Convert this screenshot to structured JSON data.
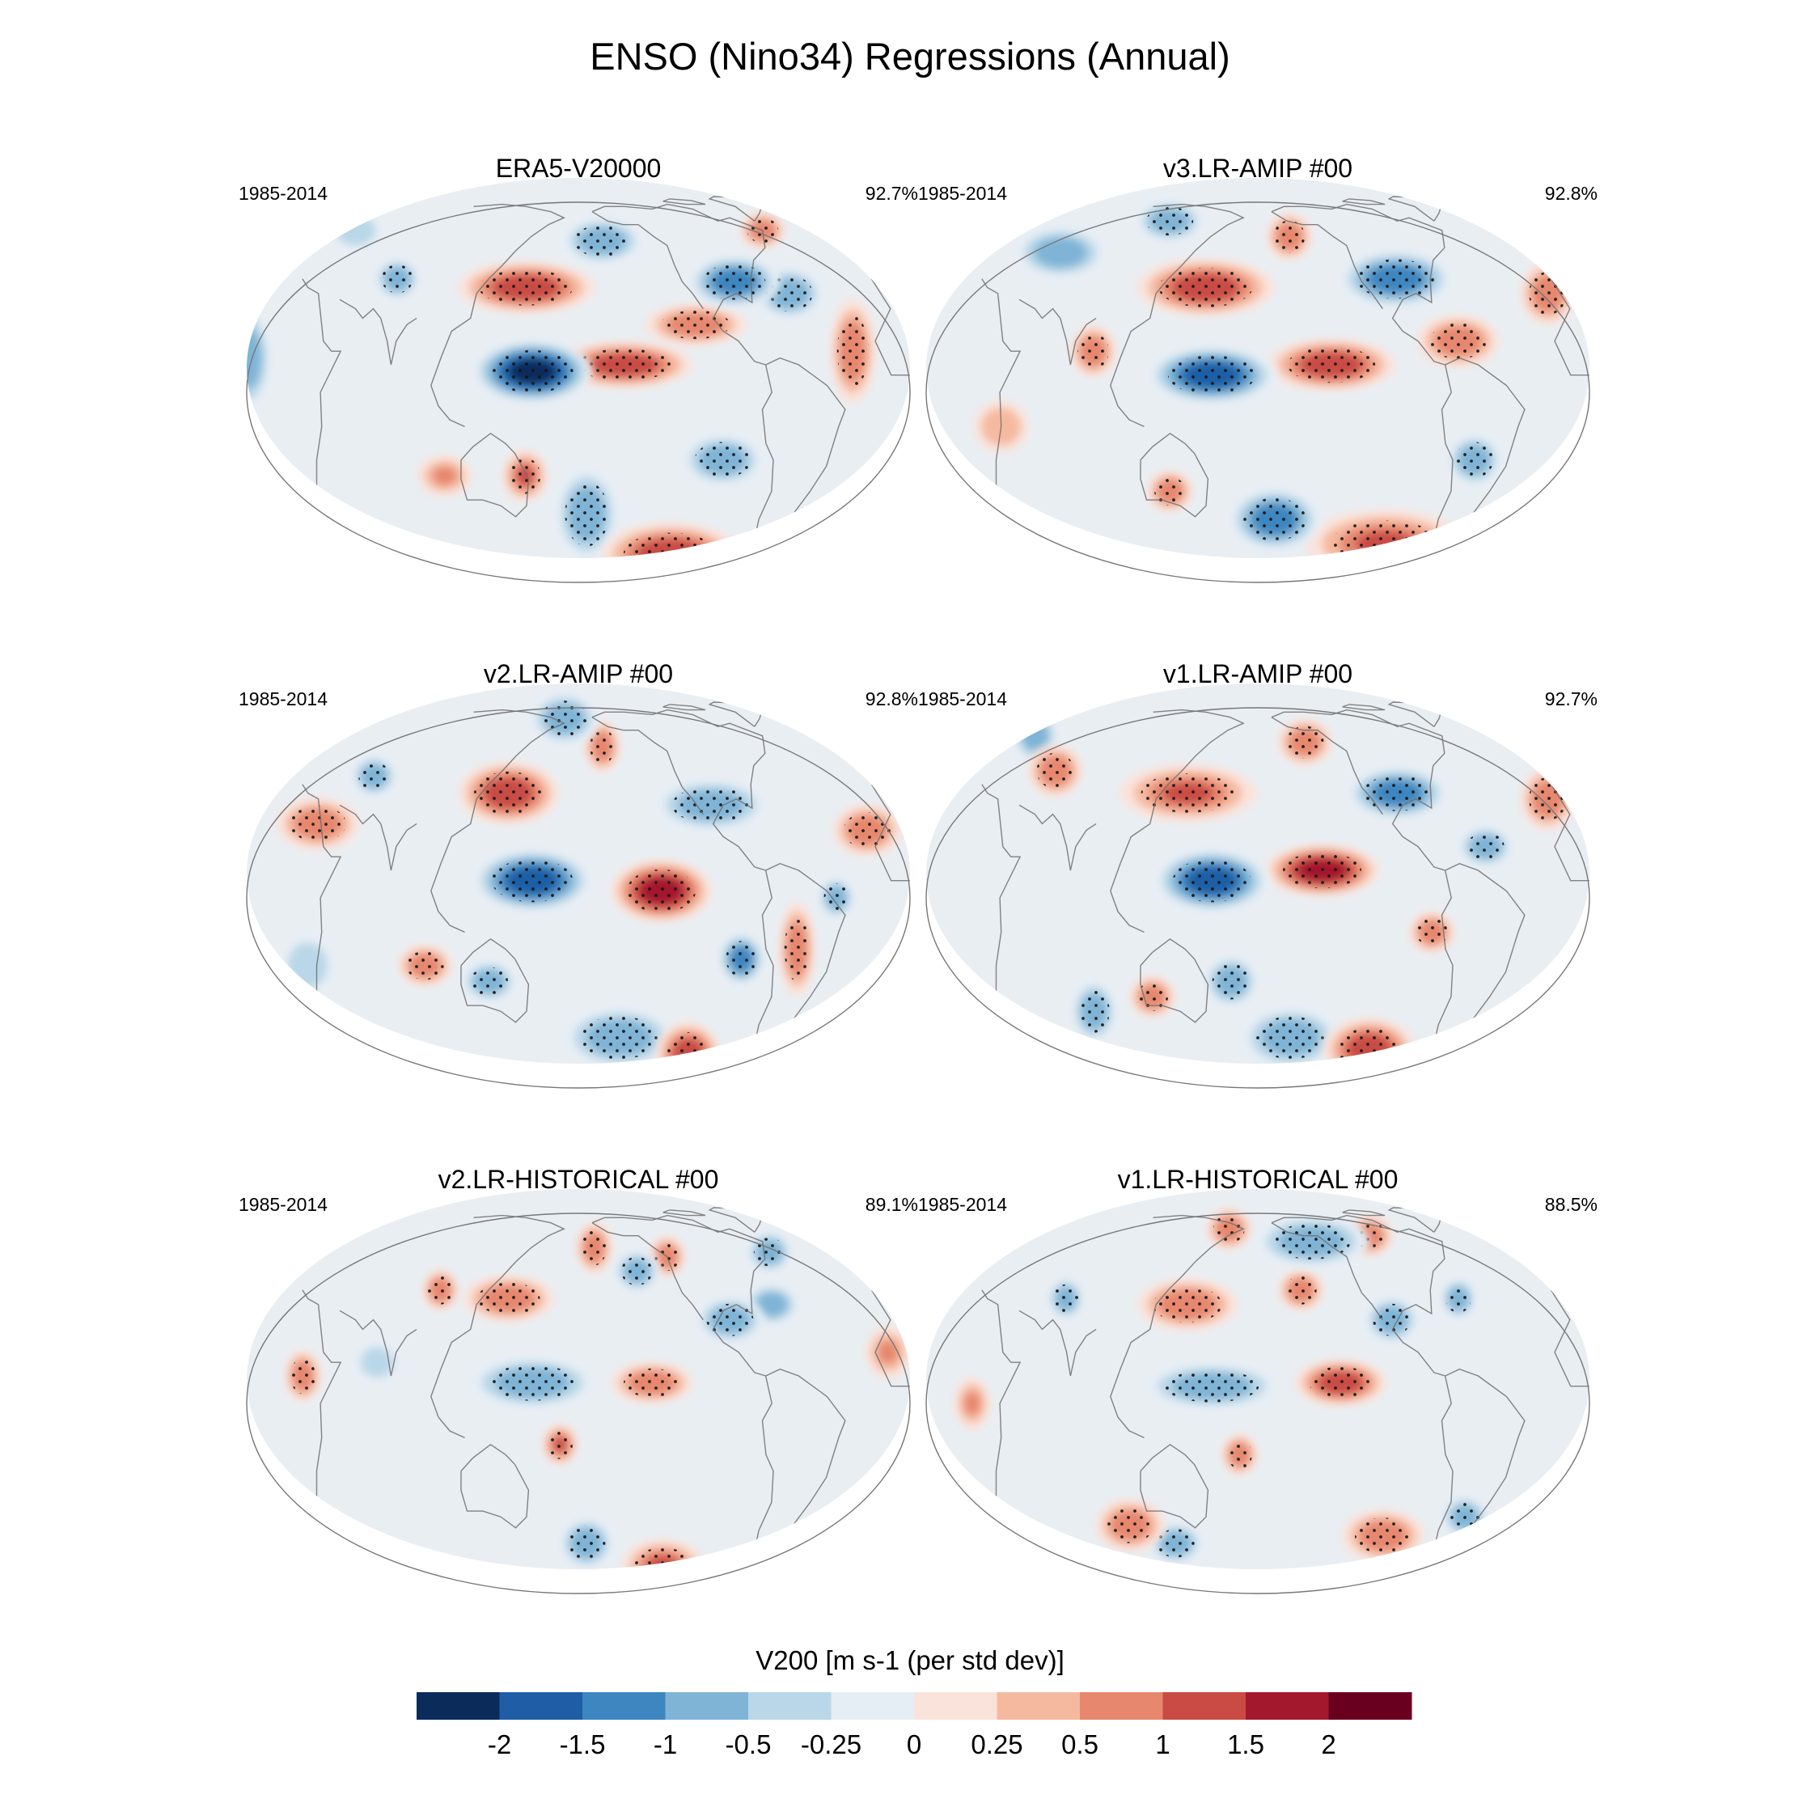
{
  "title": "ENSO (Nino34) Regressions (Annual)",
  "colors": {
    "ocean_base": "#e9eef3",
    "coast": "#6e6e6e",
    "stipple": "#111111"
  },
  "chart_data": {
    "type": "map-contour",
    "variable": "V200",
    "units_label": "V200 [m s-1 (per std dev)]",
    "levels": [
      "-2",
      "-1.5",
      "-1",
      "-0.5",
      "-0.25",
      "0",
      "0.25",
      "0.5",
      "1",
      "1.5",
      "2"
    ],
    "level_values": [
      -2,
      -1.5,
      -1,
      -0.5,
      -0.25,
      0,
      0.25,
      0.5,
      1,
      1.5,
      2
    ],
    "palette": [
      "#0b2c5b",
      "#1f5ea6",
      "#3d86c0",
      "#7fb4d6",
      "#b9d7e8",
      "#e6eef5",
      "#fae3da",
      "#f5b9a0",
      "#e6876e",
      "#c94b44",
      "#a4182d",
      "#6a0020"
    ],
    "panels": [
      {
        "title": "ERA5-V20000",
        "period": "1985-2014",
        "pct": "92.7%",
        "blobs": [
          {
            "lon": 155,
            "lat": 6,
            "v": -2.1,
            "rx": 26,
            "ry": 12,
            "sig": true
          },
          {
            "lon": 150,
            "lat": 32,
            "v": 1.2,
            "rx": 30,
            "ry": 10,
            "sig": true
          },
          {
            "lon": 205,
            "lat": 8,
            "v": 1.3,
            "rx": 30,
            "ry": 9,
            "sig": true
          },
          {
            "lon": 245,
            "lat": 20,
            "v": 0.9,
            "rx": 22,
            "ry": 8,
            "sig": true
          },
          {
            "lon": 270,
            "lat": 34,
            "v": -1.2,
            "rx": 20,
            "ry": 10,
            "sig": true
          },
          {
            "lon": 300,
            "lat": 30,
            "v": -0.8,
            "rx": 15,
            "ry": 10,
            "sig": true
          },
          {
            "lon": 195,
            "lat": 50,
            "v": -0.9,
            "rx": 18,
            "ry": 9,
            "sig": true
          },
          {
            "lon": 300,
            "lat": 55,
            "v": 0.7,
            "rx": 10,
            "ry": 7,
            "sig": true
          },
          {
            "lon": 330,
            "lat": 12,
            "v": 0.6,
            "rx": 10,
            "ry": 20,
            "sig": true
          },
          {
            "lon": 185,
            "lat": -38,
            "v": -1.0,
            "rx": 14,
            "ry": 18,
            "sig": true
          },
          {
            "lon": 240,
            "lat": -55,
            "v": 1.4,
            "rx": 30,
            "ry": 12,
            "sig": true
          },
          {
            "lon": 150,
            "lat": -25,
            "v": 1.0,
            "rx": 10,
            "ry": 10,
            "sig": true
          },
          {
            "lon": 75,
            "lat": 35,
            "v": -0.7,
            "rx": 10,
            "ry": 8,
            "sig": true
          },
          {
            "lon": 260,
            "lat": -20,
            "v": -0.8,
            "rx": 18,
            "ry": 10,
            "sig": true
          },
          {
            "lon": 35,
            "lat": 55,
            "v": -0.5,
            "rx": 12,
            "ry": 8,
            "sig": false
          },
          {
            "lon": 105,
            "lat": -25,
            "v": 0.5,
            "rx": 12,
            "ry": 8,
            "sig": false
          },
          {
            "lon": 0,
            "lat": 10,
            "v": -0.6,
            "rx": 10,
            "ry": 20,
            "sig": false
          }
        ]
      },
      {
        "title": "v3.LR-AMIP  #00",
        "period": "1985-2014",
        "pct": "92.8%",
        "blobs": [
          {
            "lon": 155,
            "lat": 5,
            "v": -1.7,
            "rx": 28,
            "ry": 11,
            "sig": true
          },
          {
            "lon": 150,
            "lat": 32,
            "v": 1.1,
            "rx": 30,
            "ry": 11,
            "sig": true
          },
          {
            "lon": 220,
            "lat": 8,
            "v": 1.4,
            "rx": 28,
            "ry": 10,
            "sig": true
          },
          {
            "lon": 290,
            "lat": 15,
            "v": 0.7,
            "rx": 18,
            "ry": 10,
            "sig": true
          },
          {
            "lon": 260,
            "lat": 35,
            "v": -1.1,
            "rx": 25,
            "ry": 11,
            "sig": true
          },
          {
            "lon": 200,
            "lat": 52,
            "v": 0.9,
            "rx": 10,
            "ry": 9,
            "sig": true
          },
          {
            "lon": 345,
            "lat": 30,
            "v": 0.9,
            "rx": 12,
            "ry": 12,
            "sig": true
          },
          {
            "lon": 190,
            "lat": -40,
            "v": -1.2,
            "rx": 20,
            "ry": 12,
            "sig": true
          },
          {
            "lon": 260,
            "lat": -50,
            "v": 1.0,
            "rx": 35,
            "ry": 13,
            "sig": true
          },
          {
            "lon": 130,
            "lat": -30,
            "v": 0.6,
            "rx": 10,
            "ry": 8,
            "sig": true
          },
          {
            "lon": 90,
            "lat": 12,
            "v": 0.8,
            "rx": 10,
            "ry": 10,
            "sig": true
          },
          {
            "lon": 300,
            "lat": -20,
            "v": -0.7,
            "rx": 12,
            "ry": 10,
            "sig": true
          },
          {
            "lon": 60,
            "lat": 45,
            "v": -0.6,
            "rx": 20,
            "ry": 10,
            "sig": false
          },
          {
            "lon": 120,
            "lat": 60,
            "v": -0.7,
            "rx": 15,
            "ry": 8,
            "sig": true
          },
          {
            "lon": 40,
            "lat": -10,
            "v": 0.4,
            "rx": 12,
            "ry": 10,
            "sig": false
          }
        ]
      },
      {
        "title": "v2.LR-AMIP  #00",
        "period": "1985-2014",
        "pct": "92.8%",
        "blobs": [
          {
            "lon": 155,
            "lat": 5,
            "v": -1.8,
            "rx": 26,
            "ry": 12,
            "sig": true
          },
          {
            "lon": 140,
            "lat": 32,
            "v": 1.2,
            "rx": 22,
            "ry": 12,
            "sig": true
          },
          {
            "lon": 225,
            "lat": 2,
            "v": 1.8,
            "rx": 22,
            "ry": 12,
            "sig": true
          },
          {
            "lon": 255,
            "lat": 28,
            "v": -1.0,
            "rx": 25,
            "ry": 10,
            "sig": true
          },
          {
            "lon": 270,
            "lat": -18,
            "v": -1.2,
            "rx": 10,
            "ry": 10,
            "sig": true
          },
          {
            "lon": 205,
            "lat": -45,
            "v": -1.0,
            "rx": 25,
            "ry": 12,
            "sig": true
          },
          {
            "lon": 250,
            "lat": -52,
            "v": 1.3,
            "rx": 14,
            "ry": 12,
            "sig": true
          },
          {
            "lon": 300,
            "lat": -15,
            "v": 0.9,
            "rx": 8,
            "ry": 18,
            "sig": true
          },
          {
            "lon": 35,
            "lat": 22,
            "v": 0.9,
            "rx": 18,
            "ry": 10,
            "sig": true
          },
          {
            "lon": 340,
            "lat": 20,
            "v": 0.9,
            "rx": 15,
            "ry": 10,
            "sig": true
          },
          {
            "lon": 195,
            "lat": 50,
            "v": 0.9,
            "rx": 8,
            "ry": 10,
            "sig": true
          },
          {
            "lon": 170,
            "lat": 65,
            "v": -0.9,
            "rx": 15,
            "ry": 10,
            "sig": true
          },
          {
            "lon": 95,
            "lat": -20,
            "v": 0.8,
            "rx": 12,
            "ry": 8,
            "sig": true
          },
          {
            "lon": 130,
            "lat": -25,
            "v": -0.7,
            "rx": 12,
            "ry": 8,
            "sig": true
          },
          {
            "lon": 60,
            "lat": 38,
            "v": -0.8,
            "rx": 10,
            "ry": 8,
            "sig": true
          },
          {
            "lon": 320,
            "lat": 0,
            "v": -0.7,
            "rx": 8,
            "ry": 8,
            "sig": true
          },
          {
            "lon": 30,
            "lat": -20,
            "v": -0.5,
            "rx": 12,
            "ry": 12,
            "sig": false
          }
        ]
      },
      {
        "title": "v1.LR-AMIP  #00",
        "period": "1985-2014",
        "pct": "92.7%",
        "blobs": [
          {
            "lon": 155,
            "lat": 5,
            "v": -1.8,
            "rx": 25,
            "ry": 12,
            "sig": true
          },
          {
            "lon": 140,
            "lat": 32,
            "v": 1.0,
            "rx": 30,
            "ry": 11,
            "sig": true
          },
          {
            "lon": 215,
            "lat": 8,
            "v": 1.6,
            "rx": 25,
            "ry": 10,
            "sig": true
          },
          {
            "lon": 260,
            "lat": 32,
            "v": -1.1,
            "rx": 22,
            "ry": 10,
            "sig": true
          },
          {
            "lon": 210,
            "lat": 52,
            "v": 0.8,
            "rx": 12,
            "ry": 9,
            "sig": true
          },
          {
            "lon": 345,
            "lat": 30,
            "v": 0.9,
            "rx": 12,
            "ry": 12,
            "sig": true
          },
          {
            "lon": 200,
            "lat": -45,
            "v": -1.0,
            "rx": 22,
            "ry": 12,
            "sig": true
          },
          {
            "lon": 250,
            "lat": -50,
            "v": 1.4,
            "rx": 20,
            "ry": 12,
            "sig": true
          },
          {
            "lon": 120,
            "lat": -30,
            "v": 0.8,
            "rx": 10,
            "ry": 8,
            "sig": true
          },
          {
            "lon": 85,
            "lat": -35,
            "v": -0.8,
            "rx": 10,
            "ry": 12,
            "sig": true
          },
          {
            "lon": 165,
            "lat": -25,
            "v": -0.7,
            "rx": 12,
            "ry": 10,
            "sig": true
          },
          {
            "lon": 275,
            "lat": -10,
            "v": 0.7,
            "rx": 10,
            "ry": 8,
            "sig": true
          },
          {
            "lon": 305,
            "lat": 15,
            "v": -0.6,
            "rx": 12,
            "ry": 8,
            "sig": true
          },
          {
            "lon": 60,
            "lat": 40,
            "v": 0.7,
            "rx": 12,
            "ry": 10,
            "sig": true
          },
          {
            "lon": 35,
            "lat": 55,
            "v": -0.6,
            "rx": 10,
            "ry": 10,
            "sig": false
          }
        ]
      },
      {
        "title": "v2.LR-HISTORICAL  #00",
        "period": "1985-2014",
        "pct": "89.1%",
        "blobs": [
          {
            "lon": 155,
            "lat": 6,
            "v": -1.0,
            "rx": 28,
            "ry": 10,
            "sig": true
          },
          {
            "lon": 140,
            "lat": 32,
            "v": 0.9,
            "rx": 20,
            "ry": 9,
            "sig": true
          },
          {
            "lon": 220,
            "lat": 6,
            "v": 0.9,
            "rx": 18,
            "ry": 8,
            "sig": true
          },
          {
            "lon": 265,
            "lat": 25,
            "v": -0.9,
            "rx": 15,
            "ry": 9,
            "sig": true
          },
          {
            "lon": 30,
            "lat": 8,
            "v": 0.9,
            "rx": 8,
            "ry": 10,
            "sig": true
          },
          {
            "lon": 100,
            "lat": 35,
            "v": 0.6,
            "rx": 8,
            "ry": 8,
            "sig": true
          },
          {
            "lon": 170,
            "lat": -12,
            "v": 1.0,
            "rx": 8,
            "ry": 8,
            "sig": true
          },
          {
            "lon": 190,
            "lat": 52,
            "v": 0.8,
            "rx": 8,
            "ry": 10,
            "sig": true
          },
          {
            "lon": 215,
            "lat": 42,
            "v": -0.8,
            "rx": 10,
            "ry": 8,
            "sig": true
          },
          {
            "lon": 235,
            "lat": 48,
            "v": 0.7,
            "rx": 8,
            "ry": 8,
            "sig": true
          },
          {
            "lon": 185,
            "lat": -45,
            "v": -0.8,
            "rx": 12,
            "ry": 10,
            "sig": true
          },
          {
            "lon": 235,
            "lat": -55,
            "v": 1.0,
            "rx": 18,
            "ry": 10,
            "sig": true
          },
          {
            "lon": 290,
            "lat": 30,
            "v": -0.6,
            "rx": 12,
            "ry": 8,
            "sig": false
          },
          {
            "lon": 300,
            "lat": 50,
            "v": -0.7,
            "rx": 10,
            "ry": 8,
            "sig": true
          },
          {
            "lon": 350,
            "lat": 15,
            "v": 0.5,
            "rx": 10,
            "ry": 10,
            "sig": false
          },
          {
            "lon": 70,
            "lat": 12,
            "v": -0.5,
            "rx": 10,
            "ry": 8,
            "sig": false
          }
        ]
      },
      {
        "title": "v1.LR-HISTORICAL  #00",
        "period": "1985-2014",
        "pct": "88.5%",
        "blobs": [
          {
            "lon": 155,
            "lat": 5,
            "v": -1.0,
            "rx": 30,
            "ry": 9,
            "sig": true
          },
          {
            "lon": 140,
            "lat": 30,
            "v": 0.9,
            "rx": 22,
            "ry": 10,
            "sig": true
          },
          {
            "lon": 225,
            "lat": 6,
            "v": 1.3,
            "rx": 20,
            "ry": 9,
            "sig": true
          },
          {
            "lon": 215,
            "lat": 55,
            "v": -1.0,
            "rx": 25,
            "ry": 10,
            "sig": true
          },
          {
            "lon": 160,
            "lat": 62,
            "v": 0.9,
            "rx": 10,
            "ry": 8,
            "sig": true
          },
          {
            "lon": 255,
            "lat": 58,
            "v": 0.9,
            "rx": 10,
            "ry": 8,
            "sig": true
          },
          {
            "lon": 205,
            "lat": 35,
            "v": 0.7,
            "rx": 10,
            "ry": 8,
            "sig": true
          },
          {
            "lon": 255,
            "lat": 25,
            "v": -0.8,
            "rx": 12,
            "ry": 9,
            "sig": true
          },
          {
            "lon": 105,
            "lat": -38,
            "v": 0.9,
            "rx": 15,
            "ry": 10,
            "sig": true
          },
          {
            "lon": 130,
            "lat": -45,
            "v": -0.7,
            "rx": 12,
            "ry": 8,
            "sig": true
          },
          {
            "lon": 255,
            "lat": -42,
            "v": 0.9,
            "rx": 18,
            "ry": 10,
            "sig": true
          },
          {
            "lon": 300,
            "lat": -35,
            "v": -0.7,
            "rx": 10,
            "ry": 8,
            "sig": true
          },
          {
            "lon": 170,
            "lat": -15,
            "v": 0.7,
            "rx": 8,
            "ry": 8,
            "sig": true
          },
          {
            "lon": 70,
            "lat": 32,
            "v": -0.7,
            "rx": 8,
            "ry": 8,
            "sig": true
          },
          {
            "lon": 295,
            "lat": 32,
            "v": -0.7,
            "rx": 8,
            "ry": 8,
            "sig": true
          },
          {
            "lon": 25,
            "lat": 0,
            "v": 0.5,
            "rx": 8,
            "ry": 10,
            "sig": false
          }
        ]
      }
    ]
  }
}
